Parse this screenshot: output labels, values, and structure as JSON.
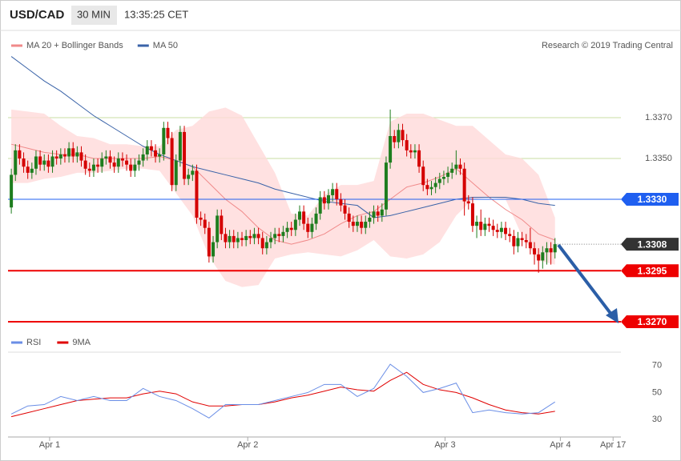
{
  "chart_data": {
    "type": "candlestick",
    "title": "USD/CAD",
    "timeframe": "30 MIN",
    "timestamp": "13:35:25 CET",
    "attribution": "Research © 2019 Trading Central",
    "open": [
      1.3326,
      1.3342,
      1.3354,
      1.335,
      1.3346,
      1.3343,
      1.3345,
      1.3351,
      1.3347,
      1.3349,
      1.3346,
      1.3351,
      1.335,
      1.3352,
      1.3351,
      1.3355,
      1.3351,
      1.3353,
      1.3349,
      1.3345,
      1.3344,
      1.3347,
      1.3346,
      1.335,
      1.3351,
      1.3348,
      1.3346,
      1.335,
      1.3349,
      1.3347,
      1.3344,
      1.3347,
      1.3349,
      1.3352,
      1.3356,
      1.3354,
      1.3351,
      1.3352,
      1.3365,
      1.336,
      1.3337,
      1.3349,
      1.3363,
      1.334,
      1.3342,
      1.3344,
      1.3321,
      1.332,
      1.3316,
      1.3302,
      1.3309,
      1.3322,
      1.3313,
      1.3309,
      1.3312,
      1.3309,
      1.3311,
      1.331,
      1.3312,
      1.3311,
      1.3313,
      1.3311,
      1.3306,
      1.3309,
      1.3311,
      1.3313,
      1.3312,
      1.3314,
      1.3316,
      1.3315,
      1.332,
      1.3324,
      1.3318,
      1.3314,
      1.3318,
      1.3323,
      1.3331,
      1.3328,
      1.3332,
      1.3335,
      1.333,
      1.3327,
      1.3323,
      1.3319,
      1.3317,
      1.3319,
      1.3316,
      1.3319,
      1.3321,
      1.3324,
      1.3322,
      1.3325,
      1.3348,
      1.3361,
      1.3358,
      1.3364,
      1.3359,
      1.3354,
      1.3353,
      1.3354,
      1.3346,
      1.3337,
      1.3335,
      1.3336,
      1.3338,
      1.334,
      1.3341,
      1.3343,
      1.3345,
      1.3347,
      1.3345,
      1.3329,
      1.3328,
      1.3317,
      1.3319,
      1.3315,
      1.3318,
      1.3317,
      1.3315,
      1.3314,
      1.3316,
      1.3313,
      1.3312,
      1.3307,
      1.3311,
      1.331,
      1.3309,
      1.3306,
      1.3303,
      1.33,
      1.3304,
      1.3306,
      1.3304
    ],
    "high": [
      1.3345,
      1.3357,
      1.3357,
      1.3353,
      1.3349,
      1.3348,
      1.3354,
      1.3354,
      1.3352,
      1.3352,
      1.3354,
      1.3354,
      1.3355,
      1.3355,
      1.3358,
      1.3358,
      1.3356,
      1.3356,
      1.3352,
      1.3348,
      1.335,
      1.335,
      1.3353,
      1.3354,
      1.3354,
      1.3351,
      1.3353,
      1.3353,
      1.3352,
      1.335,
      1.335,
      1.3352,
      1.3355,
      1.3359,
      1.3359,
      1.3357,
      1.3355,
      1.3368,
      1.3368,
      1.3363,
      1.3352,
      1.3366,
      1.3366,
      1.3345,
      1.3347,
      1.3347,
      1.3324,
      1.3323,
      1.3319,
      1.3312,
      1.3325,
      1.3325,
      1.3316,
      1.3315,
      1.3315,
      1.3314,
      1.3314,
      1.3315,
      1.3315,
      1.3316,
      1.3316,
      1.3314,
      1.3312,
      1.3314,
      1.3316,
      1.3316,
      1.3317,
      1.3319,
      1.3319,
      1.3323,
      1.3327,
      1.3327,
      1.3321,
      1.3321,
      1.3326,
      1.3334,
      1.3334,
      1.3335,
      1.3338,
      1.3338,
      1.3333,
      1.333,
      1.3326,
      1.3322,
      1.3322,
      1.3322,
      1.3322,
      1.3324,
      1.3327,
      1.3327,
      1.3328,
      1.3351,
      1.3374,
      1.3364,
      1.3367,
      1.3367,
      1.3362,
      1.3357,
      1.3357,
      1.3357,
      1.3349,
      1.334,
      1.3339,
      1.3341,
      1.3343,
      1.3344,
      1.3346,
      1.3348,
      1.3354,
      1.335,
      1.3348,
      1.3332,
      1.3331,
      1.3322,
      1.3325,
      1.3321,
      1.3321,
      1.332,
      1.3318,
      1.3319,
      1.3319,
      1.3316,
      1.3315,
      1.3314,
      1.3314,
      1.3313,
      1.3316,
      1.3309,
      1.3306,
      1.3307,
      1.3309,
      1.3309,
      1.3311
    ],
    "low": [
      1.3323,
      1.3339,
      1.3347,
      1.3343,
      1.334,
      1.334,
      1.3342,
      1.3344,
      1.3344,
      1.3343,
      1.3343,
      1.3347,
      1.3347,
      1.3348,
      1.3348,
      1.3348,
      1.3348,
      1.3346,
      1.3342,
      1.3341,
      1.3341,
      1.3343,
      1.3343,
      1.3347,
      1.3345,
      1.3343,
      1.3343,
      1.3346,
      1.3344,
      1.3341,
      1.3341,
      1.3344,
      1.3346,
      1.3349,
      1.3351,
      1.3348,
      1.3348,
      1.3349,
      1.3357,
      1.3334,
      1.3334,
      1.3346,
      1.3337,
      1.3337,
      1.3339,
      1.3318,
      1.3317,
      1.3313,
      1.3299,
      1.3299,
      1.3306,
      1.331,
      1.3306,
      1.3306,
      1.3306,
      1.3306,
      1.3307,
      1.3307,
      1.3308,
      1.3308,
      1.3308,
      1.3303,
      1.3303,
      1.3306,
      1.3308,
      1.3309,
      1.3309,
      1.3311,
      1.3312,
      1.3312,
      1.3317,
      1.3315,
      1.3311,
      1.3311,
      1.3315,
      1.332,
      1.3325,
      1.3325,
      1.3329,
      1.3327,
      1.3324,
      1.332,
      1.3316,
      1.3314,
      1.3314,
      1.3313,
      1.3313,
      1.3316,
      1.3318,
      1.3319,
      1.3319,
      1.3322,
      1.3345,
      1.3355,
      1.3355,
      1.3356,
      1.3351,
      1.335,
      1.335,
      1.3343,
      1.3334,
      1.3332,
      1.3332,
      1.3333,
      1.3335,
      1.3337,
      1.3338,
      1.334,
      1.3342,
      1.3342,
      1.3322,
      1.3325,
      1.3314,
      1.3311,
      1.3312,
      1.3312,
      1.3314,
      1.3312,
      1.3311,
      1.3311,
      1.331,
      1.3309,
      1.3303,
      1.3304,
      1.3307,
      1.3306,
      1.3303,
      1.3298,
      1.3294,
      1.3296,
      1.3298,
      1.3298,
      1.3301
    ],
    "close": [
      1.3342,
      1.3354,
      1.335,
      1.3346,
      1.3343,
      1.3345,
      1.3351,
      1.3347,
      1.3349,
      1.3346,
      1.3351,
      1.335,
      1.3352,
      1.3351,
      1.3355,
      1.3351,
      1.3353,
      1.3349,
      1.3345,
      1.3344,
      1.3347,
      1.3346,
      1.335,
      1.3351,
      1.3348,
      1.3346,
      1.335,
      1.3349,
      1.3347,
      1.3344,
      1.3347,
      1.3349,
      1.3352,
      1.3356,
      1.3354,
      1.3351,
      1.3352,
      1.3365,
      1.336,
      1.3337,
      1.3349,
      1.3363,
      1.334,
      1.3342,
      1.3344,
      1.3321,
      1.332,
      1.3316,
      1.3302,
      1.3309,
      1.3322,
      1.3313,
      1.3309,
      1.3312,
      1.3309,
      1.3311,
      1.331,
      1.3312,
      1.3311,
      1.3313,
      1.3311,
      1.3306,
      1.3309,
      1.3311,
      1.3313,
      1.3312,
      1.3314,
      1.3316,
      1.3315,
      1.332,
      1.3324,
      1.3318,
      1.3314,
      1.3318,
      1.3323,
      1.3331,
      1.3328,
      1.3332,
      1.3335,
      1.333,
      1.3327,
      1.3323,
      1.3319,
      1.3317,
      1.3319,
      1.3316,
      1.3319,
      1.3321,
      1.3324,
      1.3322,
      1.3325,
      1.3348,
      1.3361,
      1.3358,
      1.3364,
      1.3359,
      1.3354,
      1.3353,
      1.3354,
      1.3346,
      1.3337,
      1.3335,
      1.3336,
      1.3338,
      1.334,
      1.3341,
      1.3343,
      1.3345,
      1.3347,
      1.3345,
      1.3329,
      1.3328,
      1.3317,
      1.3319,
      1.3315,
      1.3318,
      1.3317,
      1.3315,
      1.3314,
      1.3316,
      1.3313,
      1.3312,
      1.3307,
      1.3311,
      1.331,
      1.3309,
      1.3306,
      1.3303,
      1.33,
      1.3304,
      1.3306,
      1.3304,
      1.3308
    ],
    "up_color": "#1e7d1e",
    "down_color": "#d40000",
    "xlim": [
      -0.8,
      148
    ],
    "xticks": [
      {
        "value": 9.3,
        "label": "Apr 1"
      },
      {
        "value": 57.4,
        "label": "Apr 2"
      },
      {
        "value": 105.3,
        "label": "Apr 3"
      },
      {
        "value": 133.3,
        "label": "Apr 4"
      },
      {
        "value": 146.1,
        "label": "Apr 17"
      }
    ],
    "ylim": [
      1.3259,
      1.3412
    ],
    "yticks": [
      {
        "value": 1.335,
        "label": "1.3350"
      },
      {
        "value": 1.337,
        "label": "1.3370"
      }
    ],
    "grid_color": "#c9dca3",
    "levels": [
      {
        "value": 1.333,
        "label": "1.3330",
        "color": "#1f5ff0"
      },
      {
        "value": 1.3308,
        "label": "1.3308",
        "color": "#333333"
      },
      {
        "value": 1.3295,
        "label": "1.3295",
        "color": "#ee0000"
      },
      {
        "value": 1.327,
        "label": "1.3270",
        "color": "#ee0000"
      }
    ],
    "line_x": [
      0,
      4,
      8,
      12,
      16,
      20,
      24,
      28,
      32,
      36,
      40,
      44,
      48,
      52,
      56,
      60,
      64,
      68,
      72,
      76,
      80,
      84,
      88,
      92,
      96,
      100,
      104,
      108,
      112,
      116,
      120,
      124,
      128,
      132
    ],
    "series": [
      {
        "name": "MA 20 + Bollinger Bands",
        "color": "#f08a8a",
        "band_color": "#ffdada",
        "values": [
          1.3357,
          1.3355,
          1.3353,
          1.3352,
          1.3352,
          1.335,
          1.335,
          1.335,
          1.335,
          1.3351,
          1.3349,
          1.3346,
          1.3338,
          1.333,
          1.3324,
          1.3316,
          1.331,
          1.3308,
          1.331,
          1.3313,
          1.3318,
          1.3322,
          1.3324,
          1.333,
          1.3336,
          1.3338,
          1.3341,
          1.3345,
          1.3338,
          1.3331,
          1.3325,
          1.332,
          1.3313,
          1.331
        ],
        "upper": [
          1.3374,
          1.3373,
          1.3372,
          1.3366,
          1.3361,
          1.336,
          1.3357,
          1.3357,
          1.3356,
          1.3356,
          1.3364,
          1.3366,
          1.3373,
          1.3375,
          1.3371,
          1.3357,
          1.3343,
          1.3323,
          1.3322,
          1.3332,
          1.3337,
          1.3337,
          1.3339,
          1.3368,
          1.3372,
          1.3372,
          1.3369,
          1.3366,
          1.3366,
          1.3359,
          1.3352,
          1.335,
          1.3342,
          1.3321
        ],
        "lower": [
          1.3338,
          1.3338,
          1.334,
          1.3341,
          1.3343,
          1.3343,
          1.3344,
          1.3345,
          1.3345,
          1.3344,
          1.3333,
          1.3322,
          1.3302,
          1.329,
          1.3287,
          1.3288,
          1.3301,
          1.3303,
          1.3304,
          1.3303,
          1.3302,
          1.3305,
          1.331,
          1.3302,
          1.3301,
          1.3303,
          1.3309,
          1.3322,
          1.333,
          1.3331,
          1.333,
          1.3312,
          1.33,
          1.3298
        ]
      },
      {
        "name": "MA 50",
        "color": "#3a63a8",
        "values": [
          1.34,
          1.3394,
          1.3388,
          1.3383,
          1.3377,
          1.3371,
          1.3366,
          1.3361,
          1.3356,
          1.3352,
          1.3349,
          1.3346,
          1.3344,
          1.3342,
          1.334,
          1.3338,
          1.3335,
          1.3333,
          1.3331,
          1.3329,
          1.3328,
          1.3327,
          1.3321,
          1.3322,
          1.3324,
          1.3326,
          1.3328,
          1.333,
          1.3331,
          1.3331,
          1.3331,
          1.333,
          1.3328,
          1.3327
        ]
      }
    ],
    "rsi": {
      "ylim": [
        17.5,
        80
      ],
      "yticks": [
        30,
        50,
        70
      ],
      "series": [
        {
          "name": "RSI",
          "color": "#6a8ee6",
          "values": [
            34,
            40,
            41,
            47,
            44,
            47,
            44,
            44,
            53,
            47,
            44,
            38,
            31,
            41,
            41,
            41,
            44,
            47,
            50,
            56,
            56,
            47,
            53,
            71,
            62,
            50,
            53,
            57,
            35,
            37,
            35,
            34,
            35,
            43
          ]
        },
        {
          "name": "9MA",
          "color": "#e00000",
          "values": [
            32,
            35,
            38,
            41,
            44,
            45,
            46,
            46,
            49,
            51,
            49,
            43,
            40,
            40,
            41,
            41,
            43,
            46,
            48,
            51,
            54,
            52,
            51,
            59,
            65,
            56,
            52,
            50,
            46,
            41,
            37,
            35,
            34,
            36
          ]
        }
      ]
    }
  }
}
